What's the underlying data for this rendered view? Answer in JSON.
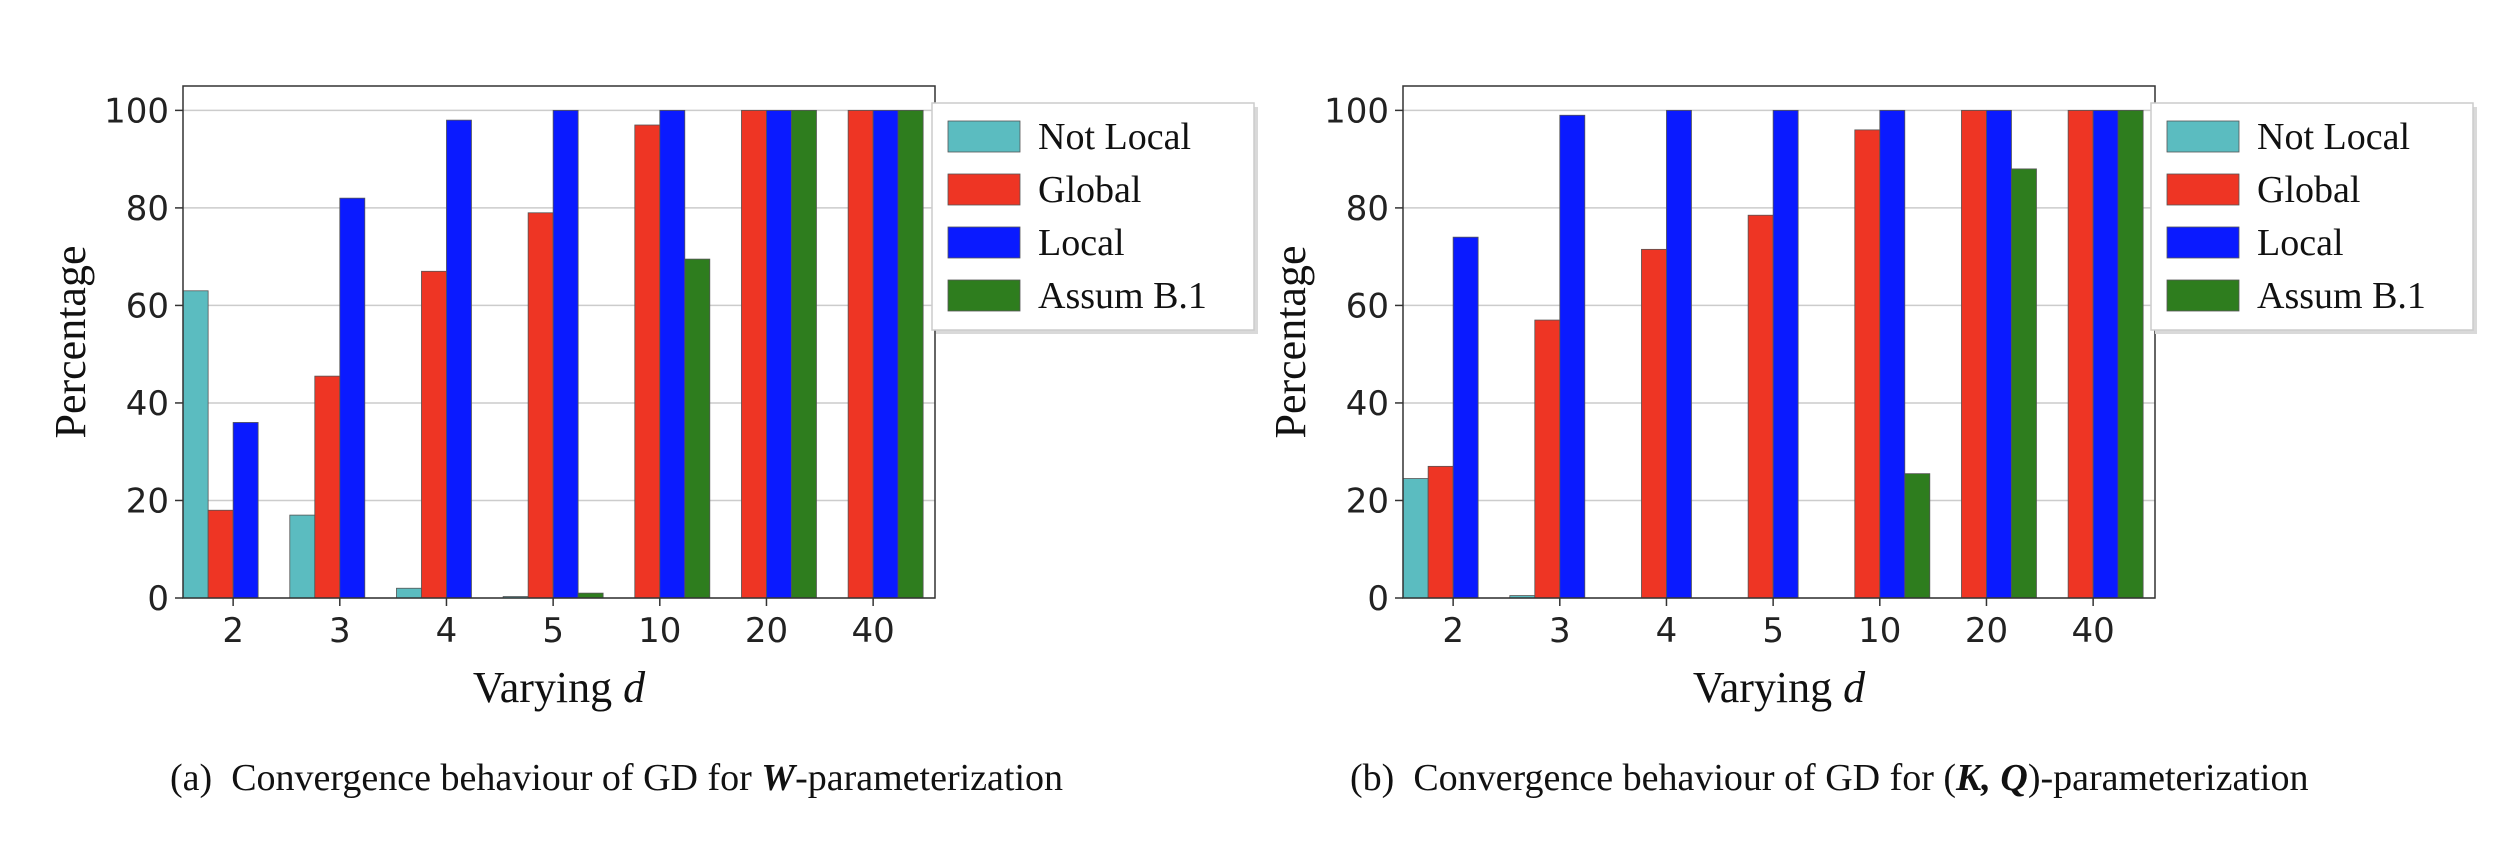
{
  "chart_data": [
    {
      "type": "bar",
      "xlabel": "Varying d",
      "ylabel": "Percentage",
      "categories": [
        "2",
        "3",
        "4",
        "5",
        "10",
        "20",
        "40"
      ],
      "ylim": [
        0,
        105
      ],
      "yticks": [
        0,
        20,
        40,
        60,
        80,
        100
      ],
      "grid": "horizontal",
      "legend_position": "outside-right-top",
      "series": [
        {
          "name": "Not Local",
          "color": "#5bbcc0",
          "values": [
            63,
            17,
            2,
            0.3,
            0,
            0,
            0
          ]
        },
        {
          "name": "Global",
          "color": "#ee3524",
          "values": [
            18,
            45.5,
            67,
            79,
            97,
            100,
            100
          ]
        },
        {
          "name": "Local",
          "color": "#0a1aff",
          "values": [
            36,
            82,
            98,
            100,
            100,
            100,
            100
          ]
        },
        {
          "name": "Assum B.1",
          "color": "#2e7d1e",
          "values": [
            0,
            0,
            0,
            1,
            69.5,
            100,
            100
          ]
        }
      ],
      "caption_label": "(a)",
      "caption_pre": "Convergence behaviour of GD for ",
      "caption_sym": "W",
      "caption_post": "-parameterization"
    },
    {
      "type": "bar",
      "xlabel": "Varying d",
      "ylabel": "Percentage",
      "categories": [
        "2",
        "3",
        "4",
        "5",
        "10",
        "20",
        "40"
      ],
      "ylim": [
        0,
        105
      ],
      "yticks": [
        0,
        20,
        40,
        60,
        80,
        100
      ],
      "grid": "horizontal",
      "legend_position": "outside-right-top",
      "series": [
        {
          "name": "Not Local",
          "color": "#5bbcc0",
          "values": [
            24.5,
            0.5,
            0,
            0,
            0,
            0,
            0
          ]
        },
        {
          "name": "Global",
          "color": "#ee3524",
          "values": [
            27,
            57,
            71.5,
            78.5,
            96,
            100,
            100
          ]
        },
        {
          "name": "Local",
          "color": "#0a1aff",
          "values": [
            74,
            99,
            100,
            100,
            100,
            100,
            100
          ]
        },
        {
          "name": "Assum B.1",
          "color": "#2e7d1e",
          "values": [
            0,
            0,
            0,
            0,
            25.5,
            88,
            100
          ]
        }
      ],
      "caption_label": "(b)",
      "caption_pre": "Convergence behaviour of GD for (",
      "caption_sym": "K, Q",
      "caption_post": ")-parameterization"
    }
  ]
}
